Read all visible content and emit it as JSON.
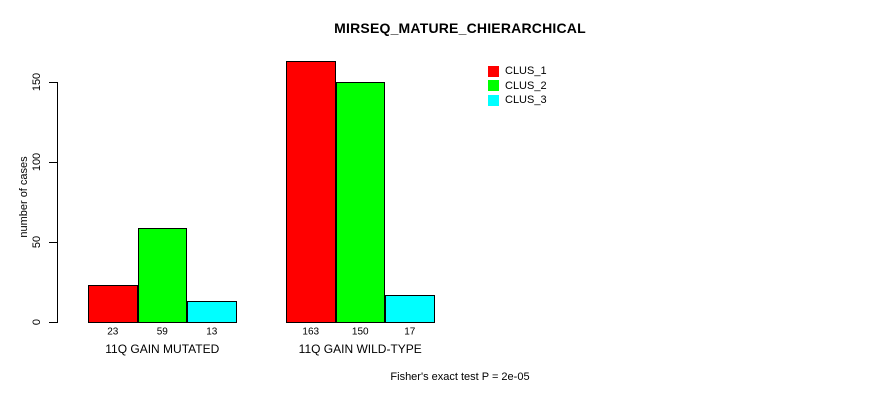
{
  "chart_data": {
    "type": "bar",
    "title": "MIRSEQ_MATURE_CHIERARCHICAL",
    "ylabel": "number of cases",
    "xlabel": "",
    "yticks": [
      0,
      50,
      100,
      150
    ],
    "ylim": [
      0,
      168
    ],
    "grid": false,
    "legend_position": "top-right",
    "categories": [
      "11Q GAIN MUTATED",
      "11Q GAIN WILD-TYPE"
    ],
    "series": [
      {
        "name": "CLUS_1",
        "color": "#ff0000",
        "values": [
          23,
          163
        ]
      },
      {
        "name": "CLUS_2",
        "color": "#00ff00",
        "values": [
          59,
          150
        ]
      },
      {
        "name": "CLUS_3",
        "color": "#00ffff",
        "values": [
          13,
          17
        ]
      }
    ],
    "bar_value_labels": [
      [
        "23",
        "59",
        "13"
      ],
      [
        "163",
        "150",
        "17"
      ]
    ],
    "caption": "Fisher's exact test P = 2e-05"
  },
  "colors": {
    "background": "#ffffff",
    "axis": "#000000",
    "text": "#000000"
  }
}
